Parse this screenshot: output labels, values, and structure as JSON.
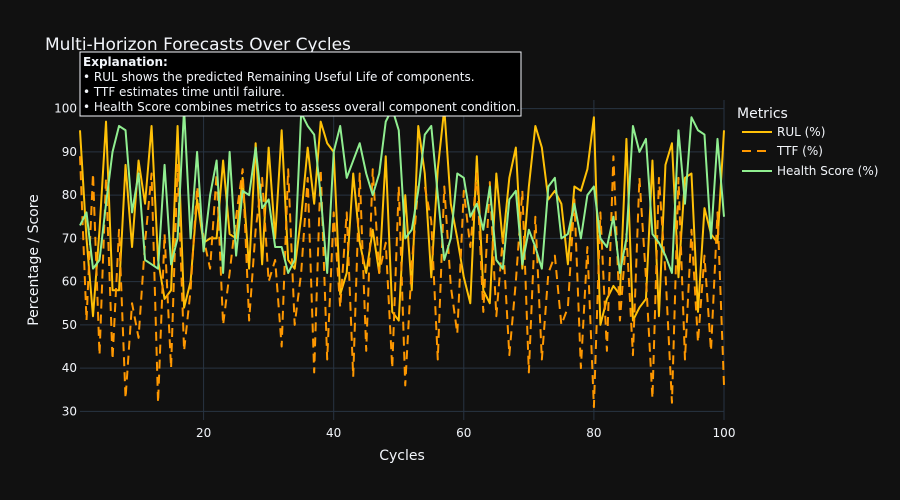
{
  "chart_data": {
    "type": "line",
    "title": "Multi-Horizon Forecasts Over Cycles",
    "xlabel": "Cycles",
    "ylabel": "Percentage / Score",
    "xlim": [
      1,
      100
    ],
    "ylim": [
      28,
      102
    ],
    "xticks": [
      20,
      40,
      60,
      80,
      100
    ],
    "yticks": [
      30,
      40,
      50,
      60,
      70,
      80,
      90,
      100
    ],
    "grid": true,
    "legend": {
      "title": "Metrics",
      "placement": "right",
      "entries": [
        "RUL (%)",
        "TTF (%)",
        "Health Score (%)"
      ]
    },
    "annotation": {
      "heading": "Explanation:",
      "lines": [
        "• RUL shows the predicted Remaining Useful Life of components.",
        "• TTF estimates time until failure.",
        "• Health Score combines metrics to assess overall component condition."
      ]
    },
    "colors": {
      "background": "#111111",
      "grid": "#283442",
      "rul": "#FFC107",
      "ttf": "#FF9800",
      "health": "#90EE90"
    },
    "series": [
      {
        "name": "RUL (%)",
        "dash": "solid",
        "values": [
          95,
          70,
          52,
          72,
          97,
          58,
          58,
          87,
          68,
          88,
          78,
          96,
          65,
          56,
          58,
          96,
          54,
          60,
          79,
          69,
          70,
          70,
          88,
          71,
          70,
          84,
          63,
          92,
          64,
          91,
          70,
          95,
          65,
          63,
          75,
          91,
          78,
          97,
          92,
          90,
          57,
          62,
          85,
          69,
          62,
          72,
          62,
          89,
          53,
          51,
          80,
          58,
          96,
          85,
          61,
          86,
          100,
          78,
          70,
          61,
          55,
          89,
          58,
          55,
          85,
          69,
          84,
          91,
          63,
          82,
          96,
          91,
          79,
          81,
          78,
          64,
          82,
          81,
          86,
          98,
          50,
          56,
          59,
          57,
          93,
          51,
          54,
          56,
          88,
          52,
          87,
          92,
          61,
          84,
          85,
          53,
          77,
          71,
          69,
          95
        ],
        "x_start": 1
      },
      {
        "name": "TTF (%)",
        "dash": "dash",
        "values": [
          89,
          51,
          85,
          43,
          84,
          42,
          72,
          33,
          55,
          47,
          69,
          85,
          32,
          71,
          40,
          87,
          44,
          58,
          82,
          70,
          63,
          85,
          50,
          62,
          75,
          86,
          51,
          72,
          84,
          60,
          65,
          45,
          86,
          50,
          62,
          84,
          39,
          86,
          42,
          76,
          54,
          76,
          38,
          85,
          44,
          86,
          62,
          69,
          40,
          82,
          36,
          64,
          82,
          82,
          74,
          42,
          82,
          59,
          48,
          81,
          68,
          85,
          53,
          83,
          52,
          70,
          43,
          60,
          81,
          39,
          75,
          42,
          62,
          66,
          50,
          54,
          79,
          40,
          68,
          31,
          76,
          44,
          89,
          51,
          71,
          43,
          84,
          61,
          33,
          84,
          62,
          32,
          84,
          42,
          72,
          46,
          66,
          44,
          76,
          36
        ],
        "x_start": 1
      },
      {
        "name": "Health Score (%)",
        "dash": "solid",
        "values": [
          73,
          76,
          63,
          65,
          78,
          90,
          96,
          95,
          76,
          85,
          65,
          64,
          63,
          87,
          64,
          70,
          100,
          70,
          90,
          67,
          80,
          88,
          62,
          90,
          66,
          81,
          80,
          91,
          77,
          79,
          68,
          68,
          62,
          65,
          99,
          96,
          94,
          80,
          62,
          90,
          96,
          84,
          88,
          92,
          85,
          80,
          85,
          97,
          100,
          95,
          70,
          72,
          81,
          94,
          96,
          80,
          65,
          70,
          85,
          84,
          75,
          78,
          72,
          82,
          65,
          63,
          79,
          81,
          64,
          72,
          68,
          63,
          82,
          84,
          70,
          71,
          78,
          70,
          80,
          82,
          70,
          68,
          75,
          62,
          70,
          96,
          90,
          93,
          71,
          69,
          66,
          62,
          95,
          78,
          98,
          95,
          94,
          70,
          93,
          75
        ],
        "x_start": 1
      }
    ]
  }
}
